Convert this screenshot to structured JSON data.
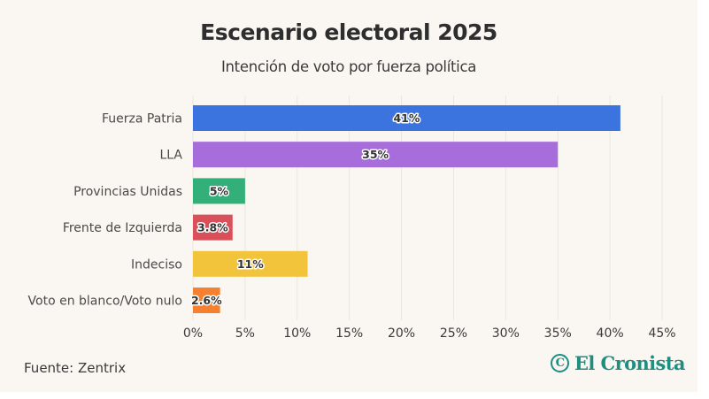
{
  "header": {
    "title": "Escenario electoral 2025",
    "subtitle": "Intención de voto por fuerza política"
  },
  "footer": {
    "source": "Fuente: Zentrix",
    "logo_text": "El Cronista",
    "logo_icon": "copyright-c-icon",
    "logo_icon_glyph": "C",
    "logo_color": "#1e8e80"
  },
  "chart_data": {
    "type": "bar",
    "orientation": "horizontal",
    "title": "Escenario electoral 2025",
    "subtitle": "Intención de voto por fuerza política",
    "xlabel": "",
    "ylabel": "",
    "xlim": [
      0,
      45
    ],
    "grid": true,
    "legend": "none",
    "categories": [
      "Fuerza Patria",
      "LLA",
      "Provincias Unidas",
      "Frente de Izquierda",
      "Indeciso",
      "Voto en blanco/Voto nulo"
    ],
    "values": [
      41,
      35,
      5,
      3.8,
      11,
      2.6
    ],
    "value_labels": [
      "41%",
      "35%",
      "5%",
      "3.8%",
      "11%",
      "2.6%"
    ],
    "colors": [
      "#3b73df",
      "#a66ddb",
      "#33b07a",
      "#d9505a",
      "#f2c43c",
      "#f5802f"
    ],
    "ticks": [
      0,
      5,
      10,
      15,
      20,
      25,
      30,
      35,
      40,
      45
    ],
    "tick_labels": [
      "0%",
      "5%",
      "10%",
      "15%",
      "20%",
      "25%",
      "30%",
      "35%",
      "40%",
      "45%"
    ],
    "source": "Fuente: Zentrix"
  }
}
